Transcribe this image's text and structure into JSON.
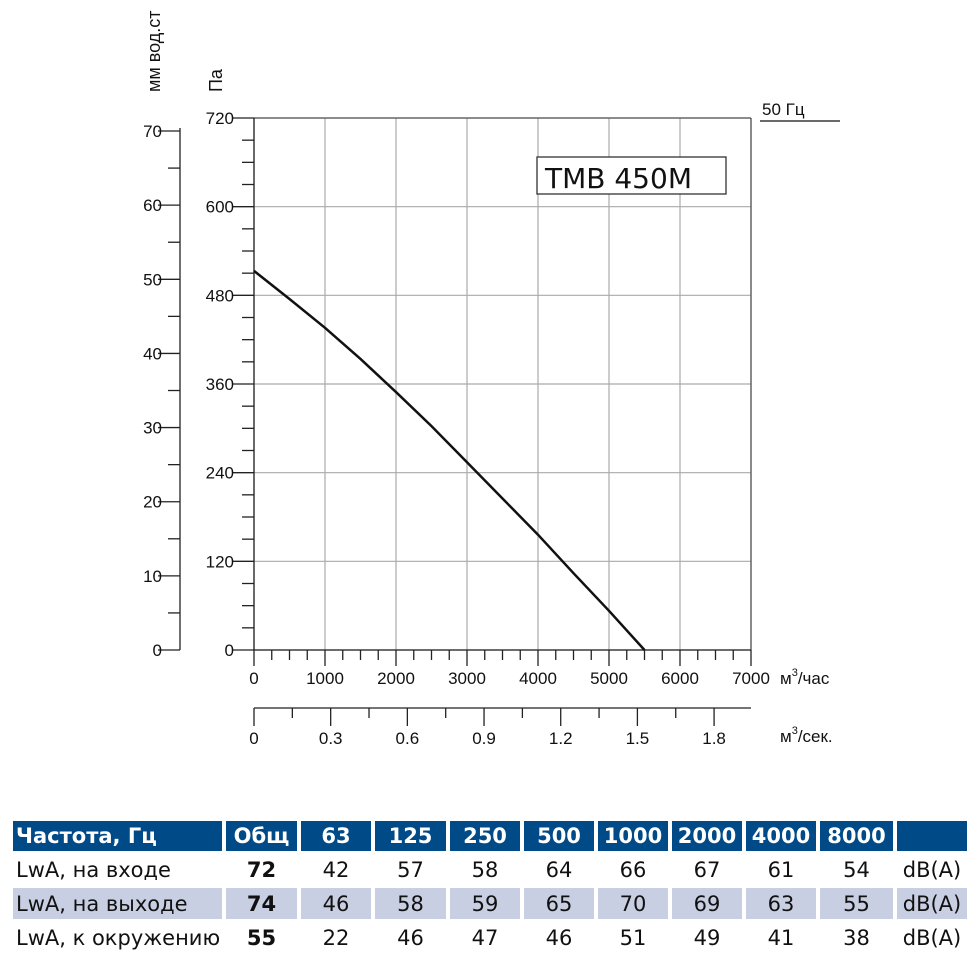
{
  "chart_data": {
    "type": "line",
    "title": "TMB 450M",
    "frequency_label": "50  Гц",
    "xlabel": "м³/час",
    "xlabel_base": "м",
    "xlabel_sup": "3",
    "xlabel_unit": "/час",
    "xlim": [
      0,
      7000
    ],
    "xticks": [
      0,
      1000,
      2000,
      3000,
      4000,
      5000,
      6000,
      7000
    ],
    "x2label_base": "м",
    "x2label_sup": "3",
    "x2label_unit": "/сек.",
    "x2ticks": [
      "0",
      "0.3",
      "0.6",
      "0.9",
      "1.2",
      "1.5",
      "1.8"
    ],
    "ylabel": "Па",
    "ylim": [
      0,
      720
    ],
    "yticks": [
      0,
      120,
      240,
      360,
      480,
      600,
      720
    ],
    "y2label": "мм вод.ст",
    "y2ticks": [
      0,
      10,
      20,
      30,
      40,
      50,
      60,
      70
    ],
    "grid": true,
    "series": [
      {
        "x": [
          0,
          500,
          1000,
          1500,
          2000,
          2500,
          3000,
          3500,
          4000,
          4500,
          5000,
          5500
        ],
        "y": [
          513,
          475,
          436,
          394,
          349,
          303,
          254,
          205,
          156,
          104,
          53,
          0
        ],
        "color": "#111111"
      }
    ]
  },
  "table": {
    "header": [
      "Частота, Гц",
      "Общ",
      "63",
      "125",
      "250",
      "500",
      "1000",
      "2000",
      "4000",
      "8000",
      ""
    ],
    "rows": [
      {
        "label": "LwA, на входе",
        "total": "72",
        "values": [
          "42",
          "57",
          "58",
          "64",
          "66",
          "67",
          "61",
          "54"
        ],
        "unit": "dB(A)"
      },
      {
        "label": "LwA, на выходе",
        "total": "74",
        "values": [
          "46",
          "58",
          "59",
          "65",
          "70",
          "69",
          "63",
          "55"
        ],
        "unit": "dB(A)"
      },
      {
        "label": "LwA, к окружению",
        "total": "55",
        "values": [
          "22",
          "46",
          "47",
          "46",
          "51",
          "49",
          "41",
          "38"
        ],
        "unit": "dB(A)"
      }
    ],
    "header_color": "#004a87",
    "stripe_color": "#c9cfe3"
  }
}
